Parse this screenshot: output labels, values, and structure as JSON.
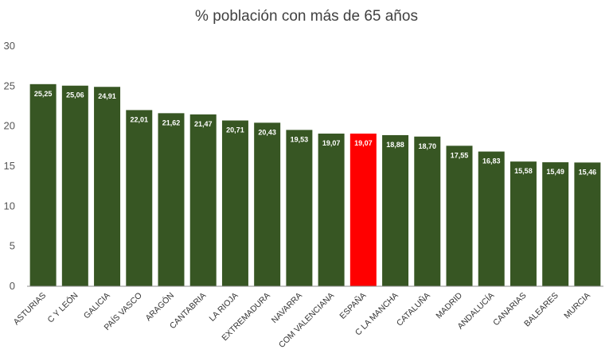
{
  "chart_data": {
    "type": "bar",
    "title": "% población con más de 65 años",
    "xlabel": "",
    "ylabel": "",
    "ylim": [
      0,
      30
    ],
    "yticks": [
      0,
      5,
      10,
      15,
      20,
      25,
      30
    ],
    "grid": false,
    "legend": "none",
    "categories": [
      "ASTURIAS",
      "C Y LEÓN",
      "GALICIA",
      "PAÍS VASCO",
      "ARAGÓN",
      "CANTABRIA",
      "LA RIOJA",
      "EXTREMADURA",
      "NAVARRA",
      "COM VALENCIANA",
      "ESPAÑA",
      "C LA MANCHA",
      "CATALUÑA",
      "MADRID",
      "ANDALUCÍA",
      "CANARIAS",
      "BALEARES",
      "MURCIA"
    ],
    "values": [
      25.25,
      25.06,
      24.91,
      22.01,
      21.62,
      21.47,
      20.71,
      20.43,
      19.53,
      19.07,
      19.07,
      18.88,
      18.7,
      17.55,
      16.83,
      15.58,
      15.49,
      15.46
    ],
    "data_labels": [
      "25,25",
      "25,06",
      "24,91",
      "22,01",
      "21,62",
      "21,47",
      "20,71",
      "20,43",
      "19,53",
      "19,07",
      "19,07",
      "18,88",
      "18,70",
      "17,55",
      "16,83",
      "15,58",
      "15,49",
      "15,46"
    ],
    "colors": {
      "default": "#375623",
      "highlight": "#FF0000",
      "axis": "#8c8c8c"
    },
    "highlight_category": "ESPAÑA"
  }
}
